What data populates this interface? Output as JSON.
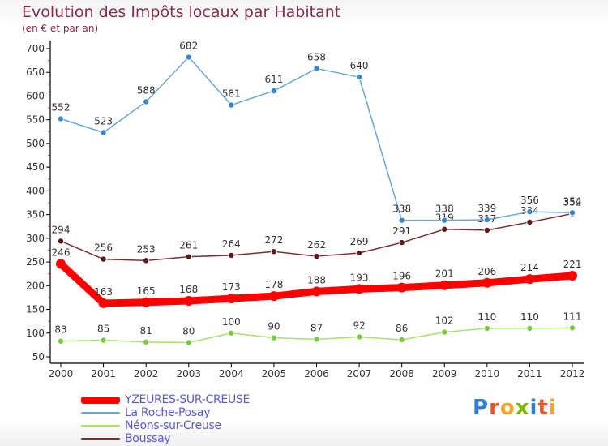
{
  "title": "Evolution des Impôts locaux par Habitant",
  "subtitle": "(en € et par an)",
  "brand": {
    "text": "Proxiti",
    "letters": [
      "P",
      "r",
      "o",
      "x",
      "i",
      "t",
      "i"
    ],
    "colors": [
      "#2f7ed8",
      "#e4572e",
      "#f5a623",
      "#7ab800",
      "#2f7ed8",
      "#e4572e",
      "#f5a623"
    ]
  },
  "chart_data": {
    "type": "line",
    "x": [
      "2000",
      "2001",
      "2002",
      "2003",
      "2004",
      "2005",
      "2006",
      "2007",
      "2008",
      "2009",
      "2010",
      "2011",
      "2012"
    ],
    "ylim": [
      50,
      700
    ],
    "yticks": [
      50,
      100,
      150,
      200,
      250,
      300,
      350,
      400,
      450,
      500,
      550,
      600,
      650,
      700
    ],
    "grid": false,
    "legend_position": "bottom-left",
    "series": [
      {
        "name": "YZEURES-SUR-CREUSE",
        "color": "#ff0000",
        "emphasis": true,
        "values": [
          246,
          163,
          165,
          168,
          173,
          178,
          188,
          193,
          196,
          201,
          206,
          214,
          221
        ]
      },
      {
        "name": "La Roche-Posay",
        "color": "#6aa6d6",
        "marker_color": "#3a86c8",
        "values": [
          552,
          523,
          588,
          682,
          581,
          611,
          658,
          640,
          338,
          338,
          339,
          356,
          354
        ]
      },
      {
        "name": "Néons-sur-Creuse",
        "color": "#a6e26a",
        "marker_color": "#7ac943",
        "values": [
          83,
          85,
          81,
          80,
          100,
          90,
          87,
          92,
          86,
          102,
          110,
          110,
          111
        ]
      },
      {
        "name": "Boussay",
        "color": "#7a3030",
        "marker_color": "#5a1a1a",
        "values": [
          294,
          256,
          253,
          261,
          264,
          272,
          262,
          269,
          291,
          319,
          317,
          334,
          352
        ]
      }
    ]
  }
}
